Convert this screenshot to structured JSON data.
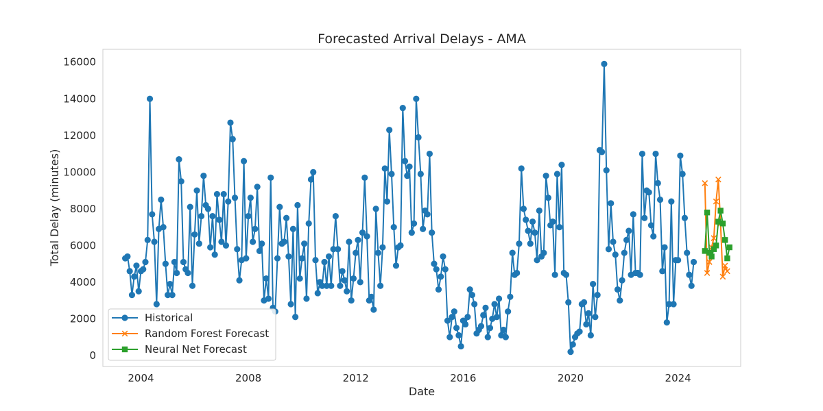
{
  "chart_data": {
    "type": "line",
    "title": "Forecasted Arrival Delays - AMA",
    "xlabel": "Date",
    "ylabel": "Total Delay (minutes)",
    "xlim": [
      "2002-08-01",
      "2026-05-01"
    ],
    "ylim": [
      -600,
      16700
    ],
    "x_ticks": [
      "2004",
      "2008",
      "2012",
      "2016",
      "2020",
      "2024"
    ],
    "y_ticks": [
      0,
      2000,
      4000,
      6000,
      8000,
      10000,
      12000,
      14000,
      16000
    ],
    "grid": false,
    "legend_position": "lower-left",
    "series": [
      {
        "name": "Historical",
        "color": "#1f77b4",
        "marker": "circle",
        "x_start": "2003-06",
        "frequency": "monthly",
        "values": [
          5300,
          5400,
          4600,
          3300,
          4300,
          4900,
          3500,
          4600,
          4700,
          5100,
          6300,
          14000,
          7700,
          6200,
          2800,
          6900,
          8500,
          7000,
          5000,
          3300,
          3900,
          3300,
          5100,
          4500,
          10700,
          9500,
          5100,
          4700,
          4500,
          8100,
          3800,
          6600,
          9000,
          6100,
          7600,
          9800,
          8200,
          8000,
          5900,
          7600,
          5500,
          8800,
          7400,
          6200,
          8800,
          6000,
          8400,
          12700,
          11800,
          8600,
          5800,
          4100,
          5200,
          10600,
          5300,
          7600,
          8600,
          6200,
          6900,
          9200,
          5700,
          6100,
          3000,
          4200,
          3100,
          9700,
          2600,
          2400,
          5300,
          8100,
          6100,
          6200,
          7500,
          5400,
          2800,
          6900,
          2100,
          8200,
          4200,
          5300,
          6100,
          3100,
          7200,
          9600,
          10000,
          5200,
          3400,
          4000,
          3800,
          5100,
          3800,
          5400,
          3800,
          5800,
          7600,
          5800,
          3800,
          4600,
          4100,
          3500,
          6200,
          3000,
          4200,
          5600,
          6300,
          4000,
          6700,
          9700,
          6500,
          3000,
          3200,
          2500,
          8000,
          5600,
          3800,
          5900,
          10200,
          8400,
          12300,
          9900,
          7000,
          4900,
          5900,
          6000,
          13500,
          10600,
          9800,
          10300,
          6700,
          7200,
          14000,
          11900,
          9900,
          6900,
          7900,
          7700,
          11000,
          6700,
          5000,
          4700,
          3600,
          4300,
          5400,
          4700,
          1900,
          1000,
          2100,
          2400,
          1500,
          1100,
          500,
          1900,
          1700,
          2100,
          3600,
          3300,
          2800,
          1200,
          1400,
          1600,
          2200,
          2600,
          1000,
          1500,
          2000,
          2800,
          2100,
          3100,
          1100,
          1400,
          1000,
          2400,
          3200,
          5600,
          4400,
          4500,
          6100,
          10200,
          8000,
          7400,
          6800,
          6100,
          7300,
          6700,
          5200,
          7900,
          5400,
          5600,
          9800,
          8600,
          7100,
          7300,
          4400,
          9900,
          7000,
          10400,
          4500,
          4400,
          2900,
          200,
          600,
          1000,
          1200,
          1300,
          2800,
          2900,
          1700,
          2300,
          1100,
          3900,
          2100,
          3300,
          11200,
          11100,
          15900,
          10100,
          5800,
          8300,
          6200,
          5500,
          3600,
          3000,
          4100,
          5600,
          6300,
          6800,
          4400,
          7700,
          4500,
          4500,
          4400,
          11000,
          7500,
          9000,
          8900,
          7100,
          6500,
          11000,
          9400,
          8500,
          4600,
          5900,
          1800,
          2800,
          8400,
          2800,
          5200,
          5200,
          10900,
          9900,
          7500,
          5600,
          4400,
          3800,
          5100
        ]
      },
      {
        "name": "Random Forest Forecast",
        "color": "#ff7f0e",
        "marker": "x",
        "x_start": "2025-01",
        "frequency": "monthly",
        "values": [
          9400,
          4500,
          5100,
          5900,
          6400,
          8400,
          9600,
          7200,
          4300,
          4900,
          4600
        ]
      },
      {
        "name": "Neural Net Forecast",
        "color": "#2ca02c",
        "marker": "square",
        "x_start": "2025-01",
        "frequency": "monthly",
        "values": [
          5700,
          7800,
          5600,
          5400,
          5800,
          6000,
          7300,
          7900,
          7200,
          6300,
          5300,
          5900
        ]
      }
    ]
  }
}
